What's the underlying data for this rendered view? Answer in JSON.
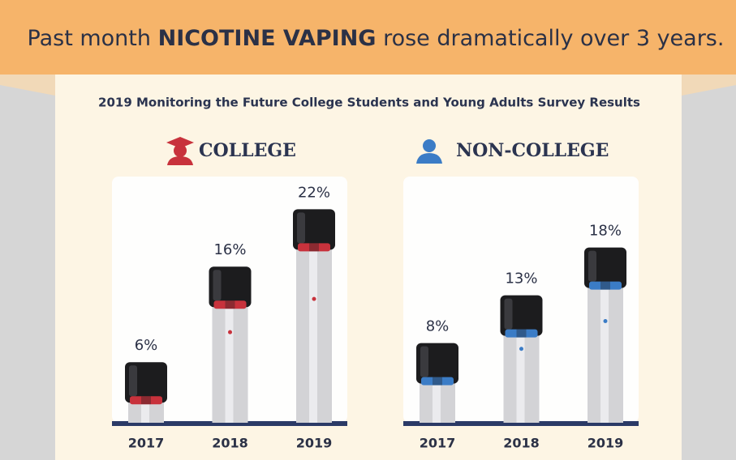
{
  "header": {
    "title": [
      "Past month",
      "NICOTINE VAPING",
      "rose dramatically over 3 years."
    ]
  },
  "subtitle": "2019 Monitoring the Future College Students and Young Adults Survey Results",
  "chart_data": [
    {
      "type": "bar",
      "title": "COLLEGE",
      "categories": [
        "2017",
        "2018",
        "2019"
      ],
      "values": [
        6,
        16,
        22
      ],
      "value_labels": [
        "6%",
        "16%",
        "22%"
      ],
      "color": "#c8323c"
    },
    {
      "type": "bar",
      "title": "NON-COLLEGE",
      "categories": [
        "2017",
        "2018",
        "2019"
      ],
      "values": [
        8,
        13,
        18
      ],
      "value_labels": [
        "8%",
        "13%",
        "18%"
      ],
      "color": "#3b7cc6"
    }
  ]
}
